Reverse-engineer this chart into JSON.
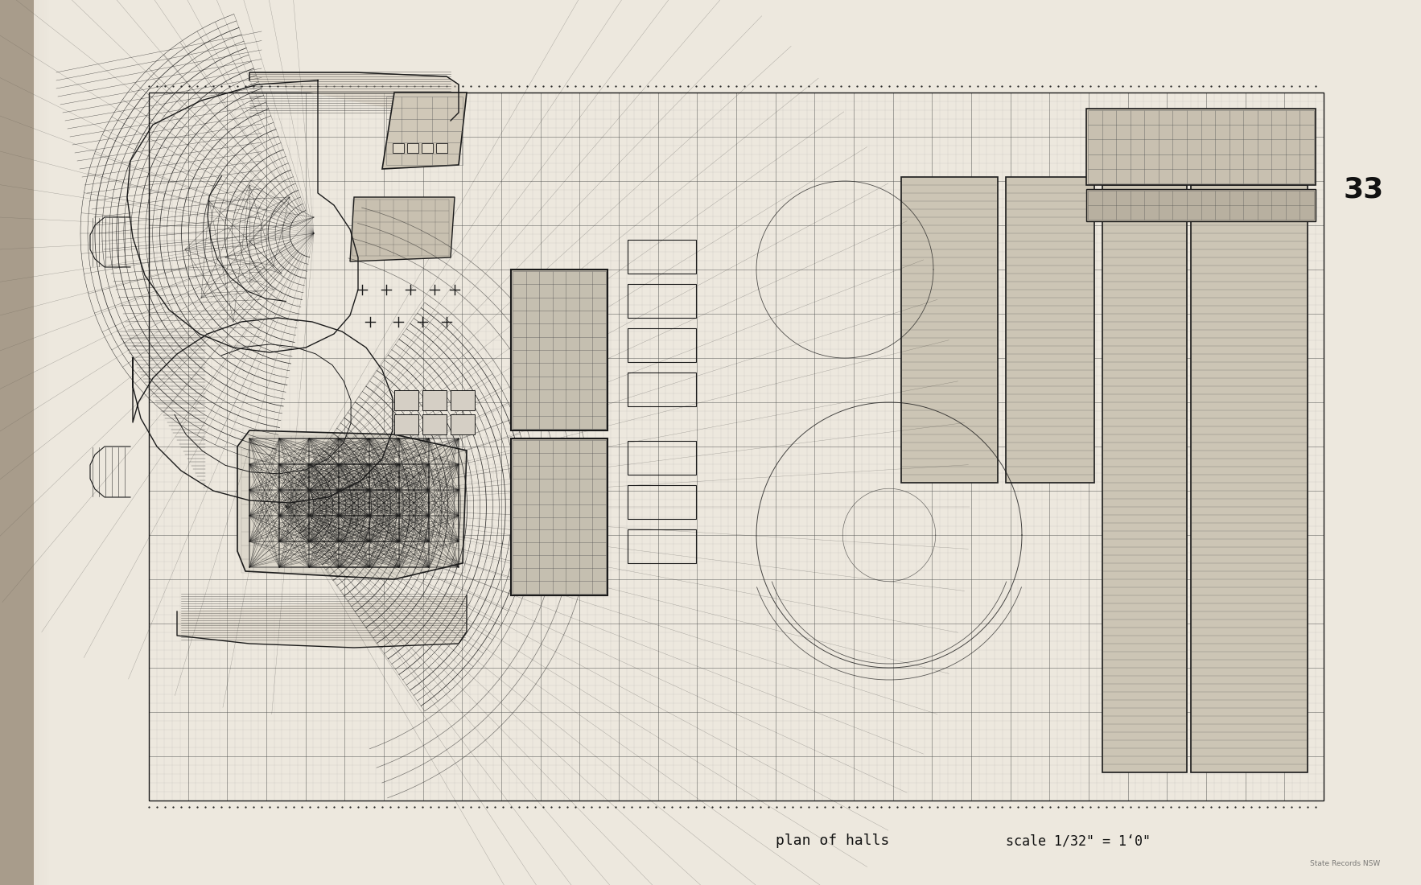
{
  "bg_color": "#ede8de",
  "paper_color": "#ede8de",
  "line_color": "#1a1a1a",
  "grid_color": "#444444",
  "mid_gray": "#888888",
  "spine_color": "#7a6a55",
  "title_text": "plan of halls",
  "scale_text": "scale 1/32\" = 1‘0\"",
  "page_number": "33",
  "watermark": "State Records NSW"
}
